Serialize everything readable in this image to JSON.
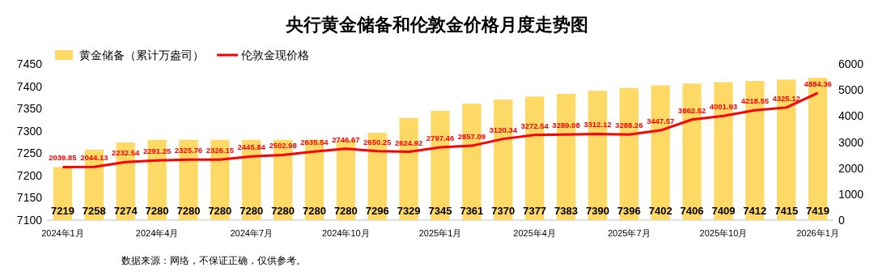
{
  "chart_data": {
    "type": "bar",
    "title": "央行黄金储备和伦敦金价格月度走势图",
    "categories": [
      "2024年1月",
      null,
      null,
      "2024年4月",
      null,
      null,
      "2024年7月",
      null,
      null,
      "2024年10月",
      null,
      null,
      "2025年1月",
      null,
      null,
      "2025年4月",
      null,
      null,
      "2025年7月",
      null,
      null,
      "2025年10月",
      null,
      null,
      "2026年1月"
    ],
    "series": [
      {
        "name": "黄金储备（累计万盎司）",
        "color": "#ffd966",
        "values": [
          7219,
          7258,
          7274,
          7280,
          7280,
          7280,
          7280,
          7280,
          7280,
          7280,
          7296,
          7329,
          7345,
          7361,
          7370,
          7377,
          7383,
          7390,
          7396,
          7402,
          7406,
          7409,
          7412,
          7415,
          7419
        ]
      },
      {
        "name": "伦敦金现价格",
        "type": "line",
        "axis": "y2",
        "color": "#ff0000",
        "values": [
          2039.85,
          2044.13,
          2232.54,
          2291.25,
          2325.76,
          2326.15,
          2445.84,
          2502.98,
          2635.54,
          2746.67,
          2650.25,
          2624.92,
          2797.46,
          2857.09,
          3120.34,
          3272.54,
          3289.08,
          3312.12,
          3288.26,
          3447.57,
          3862.52,
          4001.93,
          4218.55,
          4325.12,
          4884.36
        ]
      }
    ],
    "ylim": [
      7100,
      7450
    ],
    "yticks": [
      7100,
      7150,
      7200,
      7250,
      7300,
      7350,
      7400,
      7450
    ],
    "y2lim": [
      0,
      6000
    ],
    "y2ticks": [
      0,
      1000,
      2000,
      3000,
      4000,
      5000,
      6000
    ],
    "data_labels": true,
    "legend": "top left",
    "grid": false,
    "marker": "none",
    "line_style": "solid",
    "annotations": [
      "数据来源：网络，不保证正确，仅供参考。"
    ]
  }
}
